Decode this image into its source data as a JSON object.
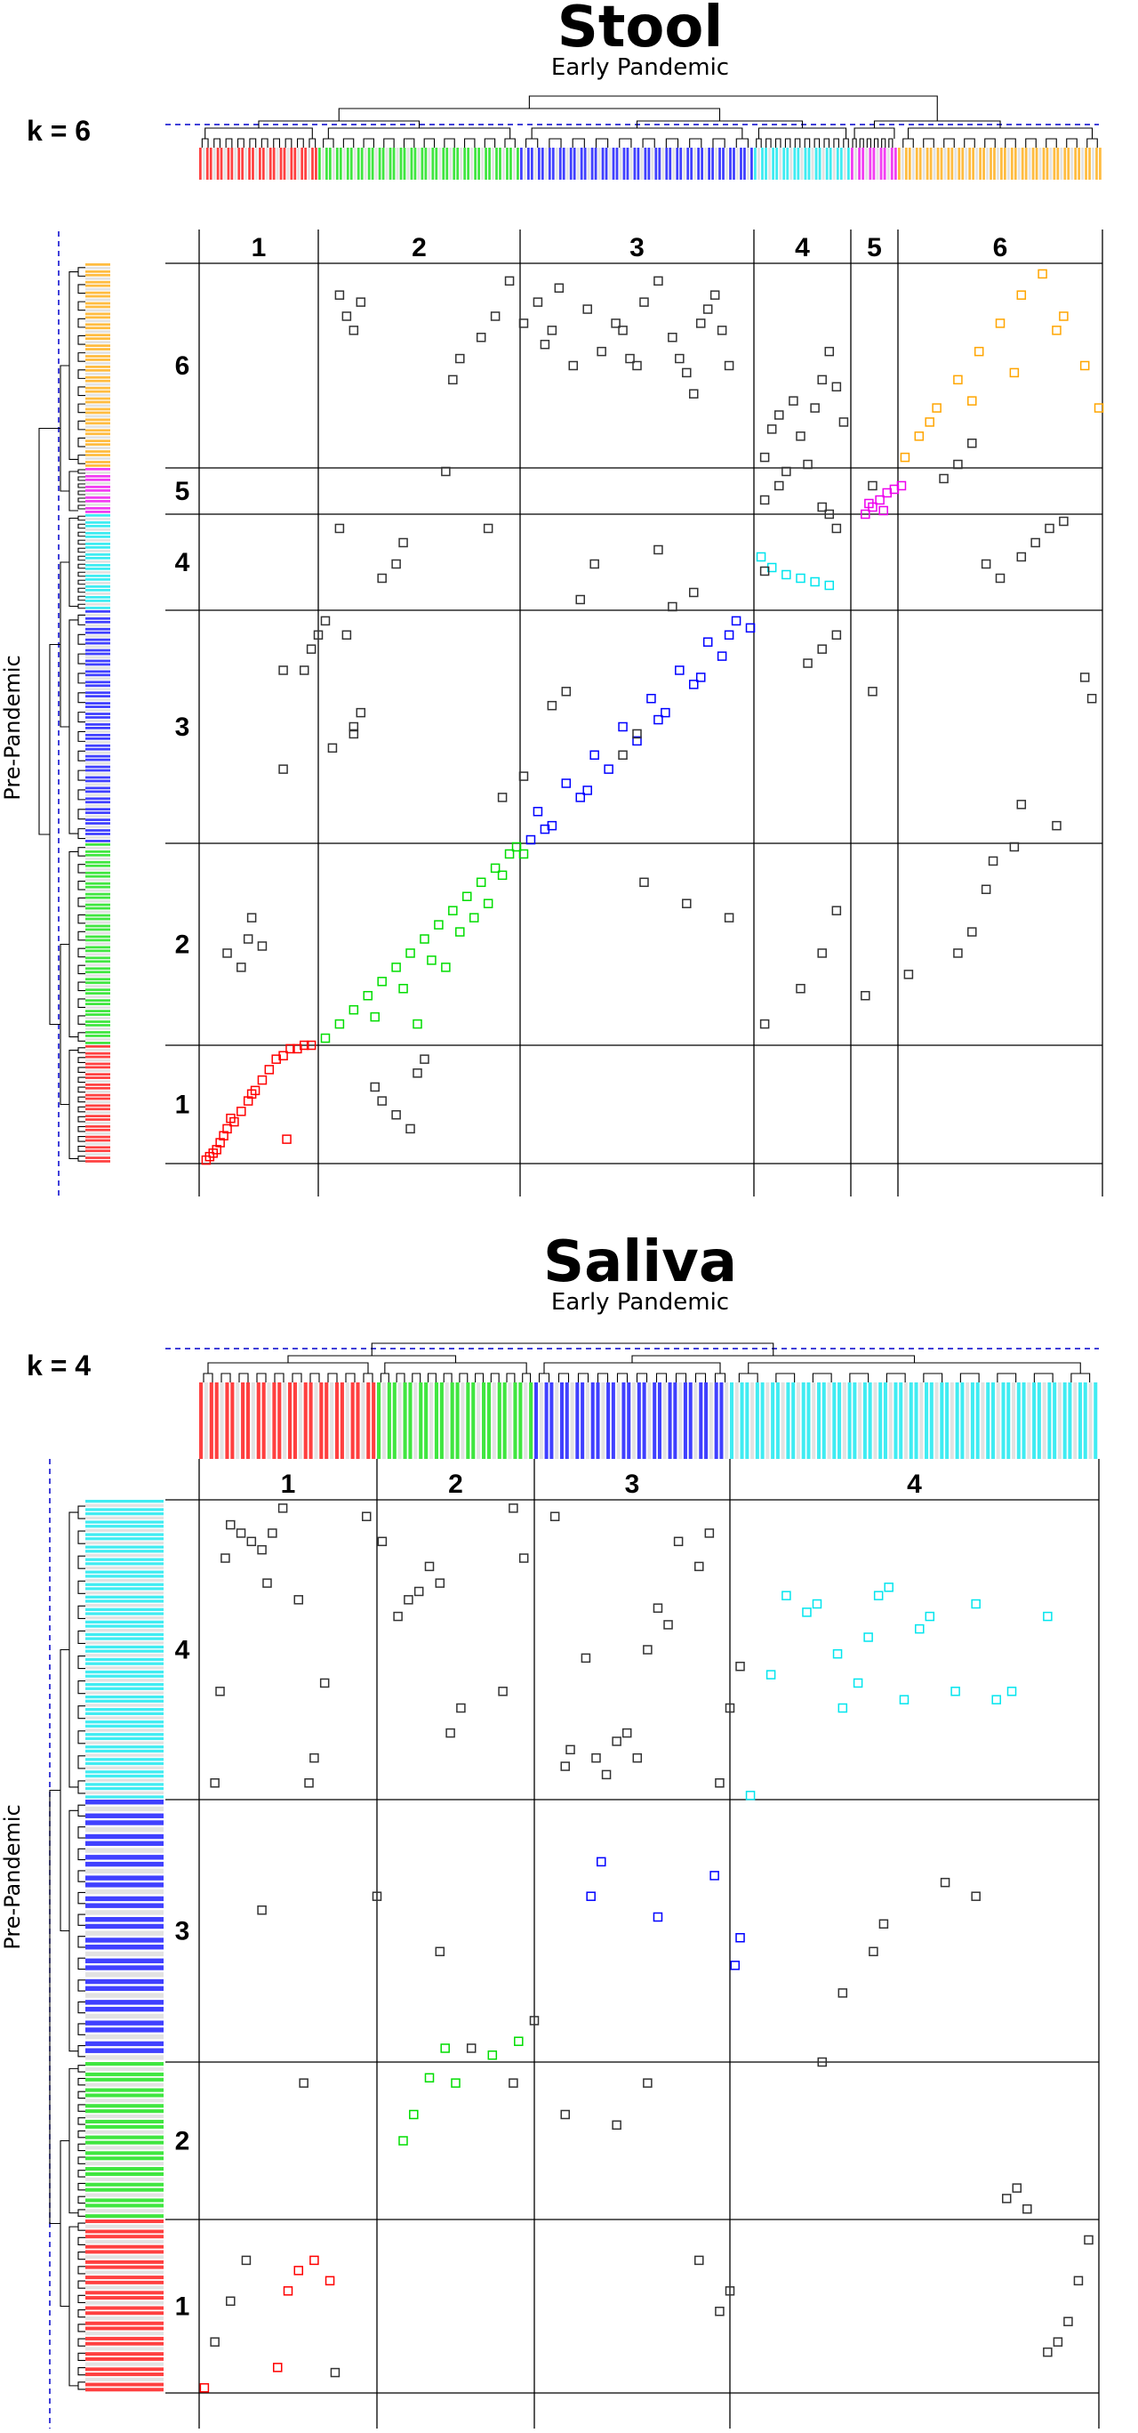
{
  "panels": [
    {
      "id": "stool",
      "title": "Stool",
      "subtitle": "Early Pandemic",
      "k_label": "k = 6",
      "y_axis_label": "Pre-Pandemic",
      "colors": {
        "1": "#ff0000",
        "2": "#00dd00",
        "3": "#0000ff",
        "4": "#00e5ee",
        "5": "#ee00ee",
        "6": "#ffa500",
        "other": "#333333"
      }
    },
    {
      "id": "saliva",
      "title": "Saliva",
      "subtitle": "Early Pandemic",
      "k_label": "k = 4",
      "y_axis_label": "Pre-Pandemic",
      "colors": {
        "1": "#ff0000",
        "2": "#00dd00",
        "3": "#0000ff",
        "4": "#00e5ee",
        "other": "#333333"
      }
    }
  ],
  "chart_data": [
    {
      "type": "scatter",
      "title": "Stool",
      "subtitle": "Early Pandemic",
      "xlabel": "Early Pandemic",
      "ylabel": "Pre-Pandemic",
      "k": 6,
      "clusters": [
        "1",
        "2",
        "3",
        "4",
        "5",
        "6"
      ],
      "x_cluster_sizes": [
        34,
        57,
        66,
        27,
        13,
        58
      ],
      "y_cluster_sizes": [
        34,
        57,
        66,
        27,
        13,
        58
      ],
      "xlim": [
        0,
        255
      ],
      "ylim": [
        0,
        255
      ],
      "points_in_cluster": [
        {
          "cluster": "1",
          "x": [
            2,
            3,
            5,
            6,
            7,
            8,
            10,
            12,
            14,
            16,
            18,
            20,
            22,
            24,
            26,
            28,
            30,
            32,
            4,
            9,
            15,
            25
          ],
          "y": [
            1,
            2,
            4,
            6,
            8,
            10,
            12,
            15,
            18,
            21,
            24,
            27,
            30,
            31,
            33,
            33,
            34,
            34,
            3,
            13,
            20,
            7
          ]
        },
        {
          "cluster": "2",
          "x": [
            36,
            40,
            44,
            48,
            52,
            56,
            60,
            64,
            68,
            72,
            76,
            80,
            84,
            88,
            90,
            50,
            58,
            66,
            74,
            82,
            86,
            92,
            62,
            70,
            78
          ],
          "y": [
            36,
            40,
            44,
            48,
            52,
            56,
            60,
            64,
            68,
            72,
            76,
            80,
            84,
            88,
            90,
            42,
            50,
            58,
            66,
            74,
            82,
            88,
            40,
            56,
            70
          ],
          "ylim": [
            34,
            91
          ]
        },
        {
          "cluster": "3",
          "x": [
            94,
            100,
            108,
            116,
            124,
            132,
            140,
            148,
            156,
            96,
            104,
            112,
            120,
            128,
            136,
            144,
            152,
            98,
            110,
            130,
            142,
            150
          ],
          "y": [
            92,
            96,
            104,
            112,
            120,
            128,
            136,
            144,
            152,
            100,
            108,
            116,
            124,
            132,
            140,
            148,
            154,
            95,
            106,
            126,
            138,
            150
          ]
        },
        {
          "cluster": "4",
          "x": [
            159,
            162,
            166,
            170,
            174,
            178
          ],
          "y": [
            172,
            169,
            167,
            166,
            165,
            164
          ]
        },
        {
          "cluster": "5",
          "x": [
            188,
            190,
            192,
            194,
            196,
            198,
            189,
            193
          ],
          "y": [
            184,
            186,
            188,
            190,
            191,
            192,
            187,
            185
          ]
        },
        {
          "cluster": "6",
          "x": [
            199,
            203,
            208,
            214,
            220,
            226,
            232,
            238,
            244,
            250,
            254,
            206,
            218,
            230,
            242
          ],
          "y": [
            200,
            206,
            214,
            222,
            230,
            238,
            246,
            252,
            240,
            226,
            214,
            210,
            216,
            224,
            236
          ]
        }
      ],
      "points_off_cluster": {
        "x": [
          8,
          12,
          14,
          15,
          18,
          50,
          52,
          56,
          60,
          62,
          64,
          40,
          42,
          44,
          46,
          70,
          72,
          74,
          80,
          84,
          88,
          92,
          96,
          98,
          100,
          102,
          106,
          110,
          114,
          118,
          120,
          122,
          124,
          126,
          130,
          134,
          136,
          138,
          140,
          142,
          144,
          146,
          148,
          150,
          160,
          162,
          164,
          168,
          170,
          172,
          174,
          176,
          178,
          180,
          182,
          160,
          164,
          166,
          176,
          178,
          180,
          190,
          210,
          214,
          218,
          222,
          226,
          232,
          236,
          240,
          244,
          250,
          252,
          30,
          32,
          34,
          36,
          40,
          42,
          44,
          100,
          104,
          108,
          112,
          130,
          134,
          140,
          160,
          172,
          176,
          180,
          190,
          24,
          24,
          38,
          44,
          46,
          52,
          56,
          58,
          82,
          86,
          92,
          120,
          124,
          126,
          138,
          150,
          160,
          170,
          176,
          180,
          188,
          200,
          214,
          218,
          222,
          224,
          230,
          232,
          242
        ],
        "y": [
          60,
          56,
          64,
          70,
          62,
          22,
          18,
          14,
          10,
          26,
          30,
          246,
          240,
          236,
          244,
          196,
          222,
          228,
          234,
          240,
          250,
          238,
          244,
          232,
          236,
          248,
          226,
          242,
          230,
          238,
          236,
          228,
          226,
          244,
          250,
          234,
          228,
          224,
          218,
          238,
          242,
          246,
          236,
          226,
          200,
          208,
          212,
          216,
          206,
          198,
          214,
          222,
          230,
          220,
          210,
          188,
          192,
          196,
          186,
          184,
          180,
          192,
          194,
          198,
          204,
          170,
          166,
          172,
          176,
          180,
          182,
          138,
          132,
          140,
          146,
          150,
          154,
          180,
          150,
          124,
          130,
          134,
          160,
          170,
          174,
          158,
          162,
          168,
          142,
          146,
          150,
          134,
          140,
          112,
          118,
          122,
          128,
          166,
          170,
          176,
          180,
          104,
          110,
          116,
          122,
          80,
          74,
          70,
          40,
          50,
          60,
          72,
          48,
          54,
          60,
          66,
          78,
          86,
          90,
          102,
          96
        ],
        "note_cluster_of_row_col": "black"
      }
    },
    {
      "type": "scatter",
      "title": "Saliva",
      "subtitle": "Early Pandemic",
      "xlabel": "Early Pandemic",
      "ylabel": "Pre-Pandemic",
      "k": 4,
      "clusters": [
        "1",
        "2",
        "3",
        "4"
      ],
      "x_cluster_sizes": [
        34,
        30,
        38,
        72
      ],
      "y_cluster_sizes": [
        34,
        30,
        38,
        72
      ],
      "xlim": [
        0,
        174
      ],
      "ylim": [
        0,
        174
      ],
      "points_in_cluster": [
        {
          "cluster": "1",
          "x": [
            1,
            15,
            17,
            19,
            22,
            25
          ],
          "y": [
            1,
            5,
            20,
            24,
            26,
            22
          ]
        },
        {
          "cluster": "2",
          "x": [
            39,
            41,
            44,
            47,
            49,
            56,
            61
          ],
          "y": [
            49,
            54,
            61,
            66,
            60,
            65,
            67
          ]
        },
        {
          "cluster": "3",
          "x": [
            75,
            77,
            88,
            99,
            103,
            104
          ],
          "y": [
            88,
            93,
            85,
            91,
            78,
            82
          ]
        },
        {
          "cluster": "4",
          "x": [
            106,
            110,
            113,
            117,
            119,
            123,
            124,
            127,
            129,
            131,
            133,
            136,
            139,
            141,
            146,
            150,
            154,
            157,
            164
          ],
          "y": [
            103,
            132,
            151,
            147,
            149,
            137,
            124,
            130,
            141,
            151,
            153,
            126,
            143,
            146,
            128,
            149,
            126,
            128,
            146
          ]
        }
      ],
      "points_off_cluster": {
        "x": [
          3,
          4,
          5,
          6,
          8,
          10,
          12,
          13,
          14,
          16,
          19,
          21,
          22,
          24,
          32,
          35,
          38,
          40,
          42,
          44,
          46,
          48,
          50,
          58,
          60,
          62,
          68,
          70,
          71,
          74,
          76,
          78,
          80,
          82,
          84,
          86,
          88,
          90,
          92,
          96,
          98,
          100,
          102,
          104,
          120,
          124,
          130,
          132,
          144,
          150,
          156,
          158,
          160,
          164,
          166,
          168,
          170,
          172,
          3,
          6,
          9,
          12,
          20,
          26,
          34,
          46,
          52,
          60,
          64,
          70,
          80,
          86,
          96,
          100,
          102
        ],
        "y": [
          106,
          128,
          160,
          168,
          166,
          164,
          162,
          154,
          166,
          172,
          150,
          106,
          112,
          130,
          170,
          164,
          146,
          150,
          152,
          158,
          154,
          118,
          124,
          128,
          172,
          160,
          170,
          110,
          114,
          136,
          112,
          108,
          116,
          118,
          112,
          138,
          148,
          144,
          164,
          158,
          166,
          106,
          124,
          134,
          64,
          74,
          80,
          84,
          90,
          88,
          38,
          40,
          36,
          8,
          10,
          14,
          22,
          30,
          10,
          18,
          26,
          86,
          60,
          4,
          88,
          80,
          66,
          60,
          70,
          54,
          52,
          60,
          26,
          16,
          20
        ]
      }
    }
  ]
}
